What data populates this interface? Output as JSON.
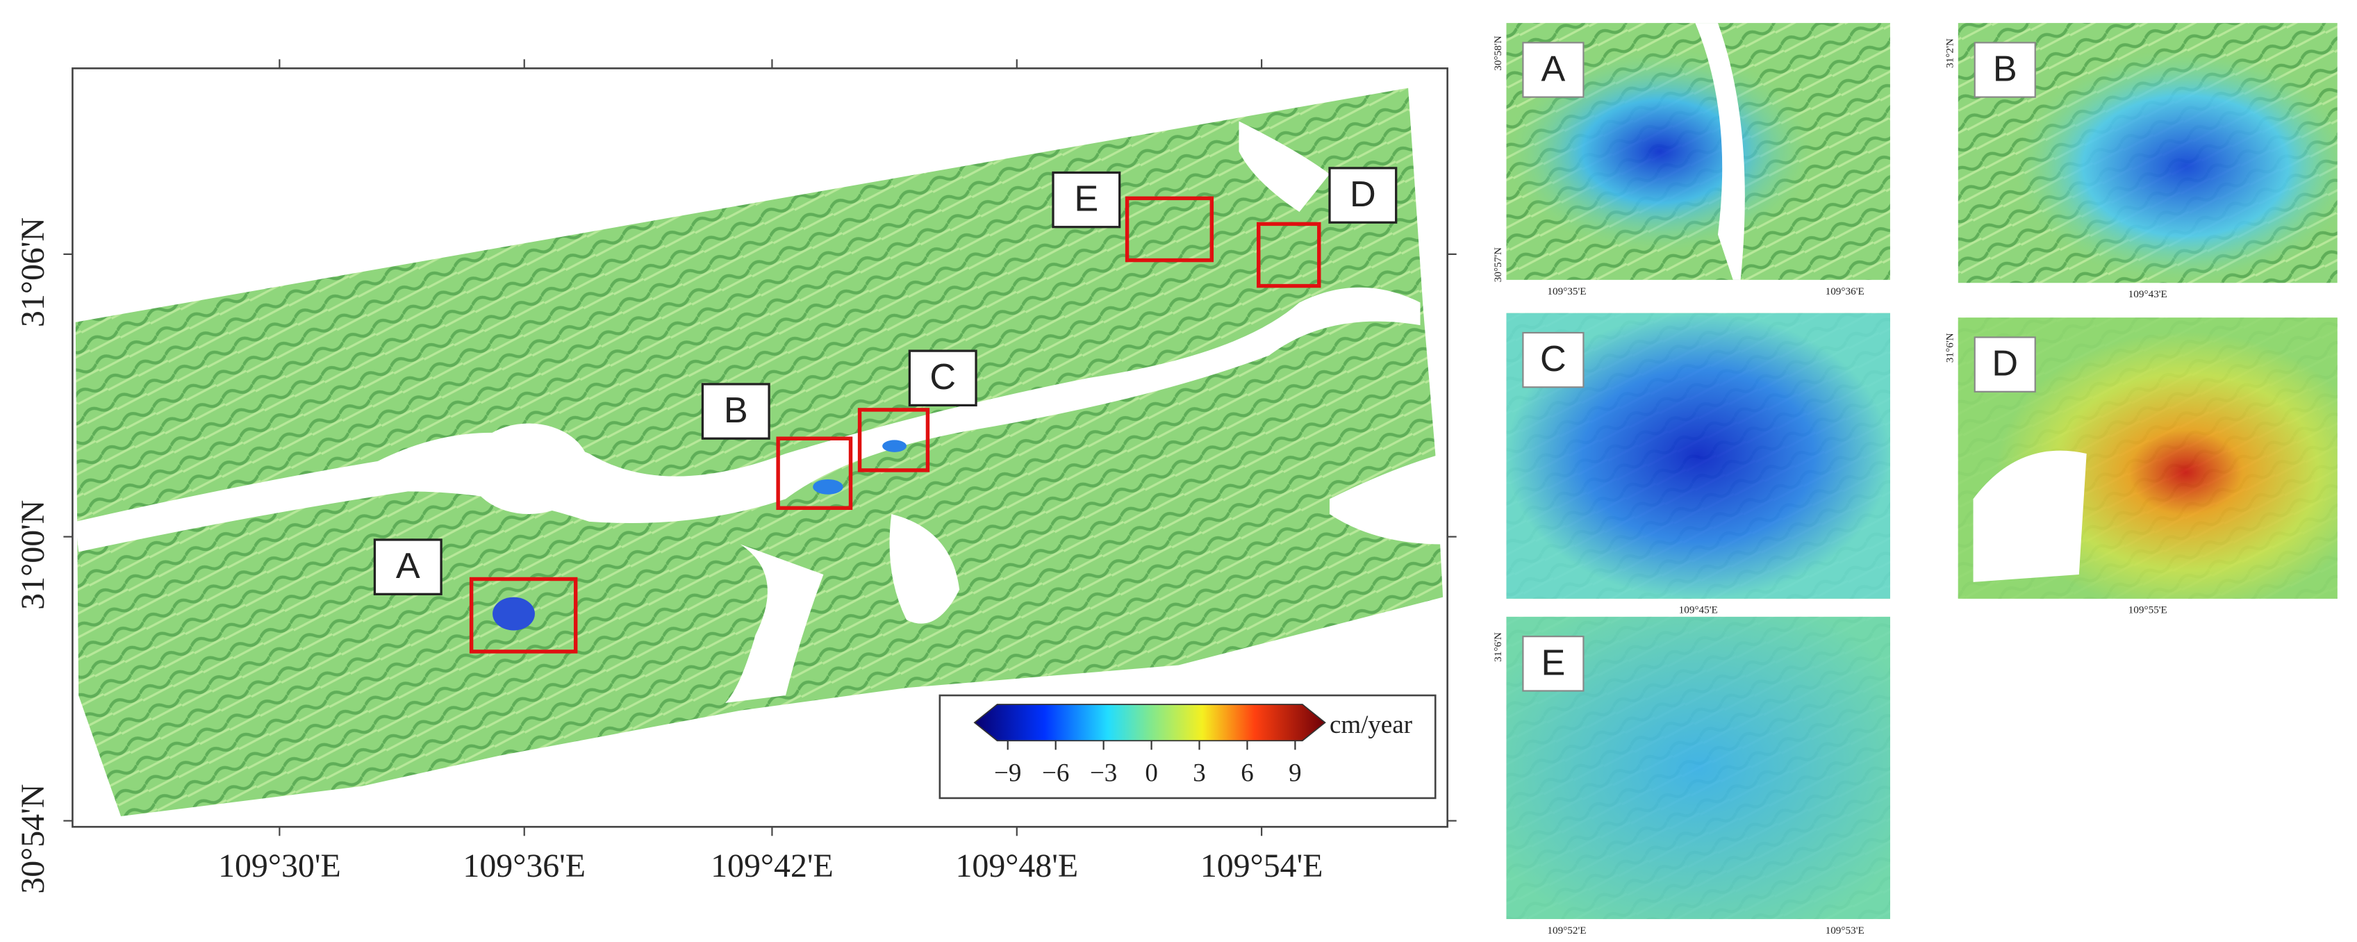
{
  "map": {
    "lat_labels": [
      "31°06'N",
      "31°00'N",
      "30°54'N"
    ],
    "lon_labels": [
      "109°30'E",
      "109°36'E",
      "109°42'E",
      "109°48'E",
      "109°54'E"
    ],
    "boxes": [
      "A",
      "B",
      "C",
      "D",
      "E"
    ]
  },
  "colorbar": {
    "ticks": [
      "−9",
      "−6",
      "−3",
      "0",
      "3",
      "6",
      "9"
    ],
    "unit": "cm/year"
  },
  "insets": [
    {
      "label": "A",
      "lat_labels": [
        "30°58'N",
        "30°57'N"
      ],
      "lon_labels": [
        "109°35'E",
        "109°36'E"
      ]
    },
    {
      "label": "B",
      "lat_labels": [
        "31°2'N"
      ],
      "lon_labels": [
        "109°43'E"
      ]
    },
    {
      "label": "C",
      "lat_labels": [],
      "lon_labels": [
        "109°45'E"
      ]
    },
    {
      "label": "D",
      "lat_labels": [
        "31°6'N"
      ],
      "lon_labels": [
        "109°55'E"
      ]
    },
    {
      "label": "E",
      "lat_labels": [
        "31°6'N"
      ],
      "lon_labels": [
        "109°52'E",
        "109°53'E"
      ]
    }
  ]
}
